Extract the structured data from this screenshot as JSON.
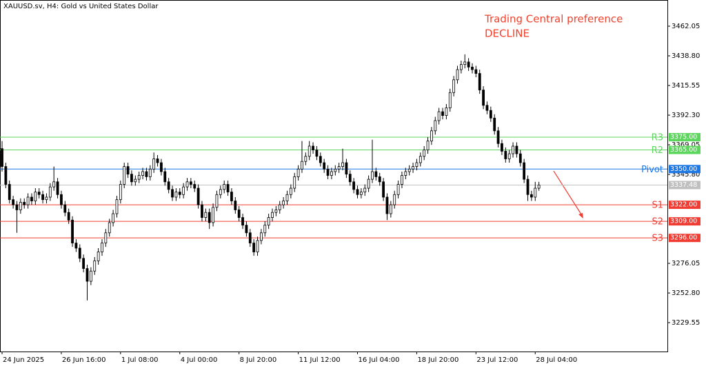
{
  "chart_data": {
    "type": "candlestick",
    "title": "XAUUSD.sv, H4:  Gold vs United States Dollar",
    "annotation": [
      "Trading Central preference",
      "DECLINE"
    ],
    "annotation_color": "#f0412d",
    "categories": [
      "24 Jun 2025",
      null,
      null,
      null,
      null,
      null,
      null,
      null,
      null,
      null,
      null,
      null,
      null,
      null,
      null,
      null,
      "26 Jun 16:00",
      null,
      null,
      null,
      null,
      null,
      null,
      null,
      null,
      null,
      null,
      null,
      null,
      null,
      null,
      null,
      "1 Jul 08:00",
      null,
      null,
      null,
      null,
      null,
      null,
      null,
      null,
      null,
      null,
      null,
      null,
      null,
      null,
      null,
      "4 Jul 00:00",
      null,
      null,
      null,
      null,
      null,
      null,
      null,
      null,
      null,
      null,
      null,
      null,
      null,
      null,
      null,
      "8 Jul 20:00",
      null,
      null,
      null,
      null,
      null,
      null,
      null,
      null,
      null,
      null,
      null,
      null,
      null,
      null,
      null,
      "11 Jul 12:00",
      null,
      null,
      null,
      null,
      null,
      null,
      null,
      null,
      null,
      null,
      null,
      null,
      null,
      null,
      null,
      "16 Jul 04:00",
      null,
      null,
      null,
      null,
      null,
      null,
      null,
      null,
      null,
      null,
      null,
      null,
      null,
      null,
      null,
      "18 Jul 20:00",
      null,
      null,
      null,
      null,
      null,
      null,
      null,
      null,
      null,
      null,
      null,
      null,
      null,
      null,
      null,
      "23 Jul 12:00",
      null,
      null,
      null,
      null,
      null,
      null,
      null,
      null,
      null,
      null,
      null,
      null,
      null,
      null,
      null,
      "28 Jul 04:00",
      null
    ],
    "candles": [
      [
        3366,
        3372,
        3348,
        3352
      ],
      [
        3352,
        3355,
        3335,
        3338
      ],
      [
        3338,
        3341,
        3323,
        3326
      ],
      [
        3326,
        3329,
        3319,
        3322
      ],
      [
        3322,
        3325,
        3300,
        3318
      ],
      [
        3318,
        3327,
        3315,
        3324
      ],
      [
        3324,
        3327,
        3319,
        3322
      ],
      [
        3322,
        3331,
        3319,
        3328
      ],
      [
        3328,
        3331,
        3322,
        3325
      ],
      [
        3325,
        3335,
        3322,
        3332
      ],
      [
        3332,
        3335,
        3327,
        3330
      ],
      [
        3330,
        3333,
        3323,
        3326
      ],
      [
        3326,
        3331,
        3323,
        3328
      ],
      [
        3328,
        3339,
        3325,
        3336
      ],
      [
        3336,
        3352,
        3333,
        3340
      ],
      [
        3340,
        3343,
        3327,
        3330
      ],
      [
        3330,
        3333,
        3319,
        3322
      ],
      [
        3322,
        3325,
        3313,
        3316
      ],
      [
        3316,
        3319,
        3307,
        3310
      ],
      [
        3310,
        3313,
        3289,
        3292
      ],
      [
        3292,
        3295,
        3285,
        3288
      ],
      [
        3288,
        3291,
        3277,
        3280
      ],
      [
        3280,
        3283,
        3269,
        3272
      ],
      [
        3272,
        3275,
        3247,
        3262
      ],
      [
        3262,
        3273,
        3259,
        3270
      ],
      [
        3270,
        3281,
        3267,
        3278
      ],
      [
        3278,
        3288,
        3275,
        3285
      ],
      [
        3285,
        3295,
        3282,
        3292
      ],
      [
        3292,
        3303,
        3289,
        3300
      ],
      [
        3300,
        3311,
        3297,
        3308
      ],
      [
        3308,
        3318,
        3305,
        3315
      ],
      [
        3315,
        3329,
        3312,
        3326
      ],
      [
        3326,
        3341,
        3323,
        3338
      ],
      [
        3338,
        3355,
        3335,
        3352
      ],
      [
        3352,
        3355,
        3343,
        3346
      ],
      [
        3346,
        3349,
        3337,
        3340
      ],
      [
        3340,
        3345,
        3337,
        3342
      ],
      [
        3342,
        3348,
        3339,
        3345
      ],
      [
        3345,
        3351,
        3342,
        3348
      ],
      [
        3348,
        3351,
        3341,
        3344
      ],
      [
        3344,
        3353,
        3341,
        3350
      ],
      [
        3350,
        3363,
        3347,
        3358
      ],
      [
        3358,
        3361,
        3352,
        3355
      ],
      [
        3355,
        3358,
        3345,
        3348
      ],
      [
        3348,
        3351,
        3337,
        3340
      ],
      [
        3340,
        3343,
        3331,
        3334
      ],
      [
        3334,
        3337,
        3325,
        3328
      ],
      [
        3328,
        3335,
        3325,
        3332
      ],
      [
        3332,
        3335,
        3327,
        3330
      ],
      [
        3330,
        3339,
        3327,
        3336
      ],
      [
        3336,
        3343,
        3333,
        3340
      ],
      [
        3340,
        3343,
        3335,
        3338
      ],
      [
        3338,
        3341,
        3332,
        3335
      ],
      [
        3335,
        3338,
        3319,
        3322
      ],
      [
        3322,
        3325,
        3309,
        3312
      ],
      [
        3312,
        3319,
        3309,
        3316
      ],
      [
        3316,
        3319,
        3303,
        3308
      ],
      [
        3308,
        3323,
        3305,
        3320
      ],
      [
        3320,
        3333,
        3317,
        3330
      ],
      [
        3330,
        3337,
        3327,
        3334
      ],
      [
        3334,
        3341,
        3331,
        3338
      ],
      [
        3338,
        3341,
        3329,
        3332
      ],
      [
        3332,
        3335,
        3322,
        3325
      ],
      [
        3325,
        3328,
        3315,
        3318
      ],
      [
        3318,
        3321,
        3309,
        3312
      ],
      [
        3312,
        3315,
        3303,
        3306
      ],
      [
        3306,
        3309,
        3297,
        3300
      ],
      [
        3300,
        3303,
        3289,
        3292
      ],
      [
        3292,
        3295,
        3282,
        3285
      ],
      [
        3285,
        3297,
        3282,
        3294
      ],
      [
        3294,
        3303,
        3291,
        3300
      ],
      [
        3300,
        3309,
        3297,
        3306
      ],
      [
        3306,
        3315,
        3303,
        3312
      ],
      [
        3312,
        3319,
        3309,
        3316
      ],
      [
        3316,
        3321,
        3313,
        3318
      ],
      [
        3318,
        3325,
        3315,
        3322
      ],
      [
        3322,
        3328,
        3319,
        3325
      ],
      [
        3325,
        3333,
        3322,
        3330
      ],
      [
        3330,
        3338,
        3327,
        3335
      ],
      [
        3335,
        3347,
        3332,
        3344
      ],
      [
        3344,
        3353,
        3341,
        3350
      ],
      [
        3350,
        3372,
        3347,
        3356
      ],
      [
        3356,
        3363,
        3353,
        3360
      ],
      [
        3360,
        3372,
        3357,
        3368
      ],
      [
        3368,
        3371,
        3362,
        3365
      ],
      [
        3365,
        3368,
        3357,
        3360
      ],
      [
        3360,
        3363,
        3352,
        3355
      ],
      [
        3355,
        3358,
        3347,
        3350
      ],
      [
        3350,
        3353,
        3342,
        3345
      ],
      [
        3345,
        3351,
        3342,
        3348
      ],
      [
        3348,
        3353,
        3345,
        3350
      ],
      [
        3350,
        3355,
        3347,
        3352
      ],
      [
        3352,
        3366,
        3349,
        3355
      ],
      [
        3355,
        3358,
        3343,
        3346
      ],
      [
        3346,
        3349,
        3337,
        3340
      ],
      [
        3340,
        3343,
        3331,
        3334
      ],
      [
        3334,
        3337,
        3327,
        3330
      ],
      [
        3330,
        3335,
        3327,
        3332
      ],
      [
        3332,
        3338,
        3329,
        3335
      ],
      [
        3335,
        3345,
        3332,
        3342
      ],
      [
        3342,
        3373,
        3339,
        3348
      ],
      [
        3348,
        3351,
        3341,
        3344
      ],
      [
        3344,
        3347,
        3337,
        3340
      ],
      [
        3340,
        3343,
        3325,
        3328
      ],
      [
        3328,
        3331,
        3310,
        3315
      ],
      [
        3315,
        3325,
        3312,
        3322
      ],
      [
        3322,
        3333,
        3319,
        3330
      ],
      [
        3330,
        3341,
        3327,
        3338
      ],
      [
        3338,
        3348,
        3335,
        3345
      ],
      [
        3345,
        3351,
        3342,
        3348
      ],
      [
        3348,
        3353,
        3345,
        3350
      ],
      [
        3350,
        3355,
        3347,
        3352
      ],
      [
        3352,
        3358,
        3349,
        3355
      ],
      [
        3355,
        3363,
        3352,
        3360
      ],
      [
        3360,
        3368,
        3357,
        3365
      ],
      [
        3365,
        3375,
        3362,
        3372
      ],
      [
        3372,
        3383,
        3369,
        3380
      ],
      [
        3380,
        3391,
        3377,
        3388
      ],
      [
        3388,
        3398,
        3385,
        3395
      ],
      [
        3395,
        3398,
        3389,
        3392
      ],
      [
        3392,
        3401,
        3389,
        3398
      ],
      [
        3398,
        3413,
        3395,
        3410
      ],
      [
        3410,
        3423,
        3407,
        3420
      ],
      [
        3420,
        3431,
        3417,
        3428
      ],
      [
        3428,
        3435,
        3425,
        3432
      ],
      [
        3432,
        3440,
        3429,
        3434
      ],
      [
        3434,
        3437,
        3427,
        3430
      ],
      [
        3430,
        3433,
        3425,
        3428
      ],
      [
        3428,
        3431,
        3422,
        3425
      ],
      [
        3425,
        3428,
        3409,
        3412
      ],
      [
        3412,
        3415,
        3397,
        3400
      ],
      [
        3400,
        3403,
        3393,
        3396
      ],
      [
        3396,
        3399,
        3387,
        3390
      ],
      [
        3390,
        3393,
        3377,
        3380
      ],
      [
        3380,
        3383,
        3367,
        3370
      ],
      [
        3370,
        3373,
        3361,
        3364
      ],
      [
        3364,
        3367,
        3355,
        3358
      ],
      [
        3358,
        3365,
        3355,
        3362
      ],
      [
        3362,
        3371,
        3359,
        3368
      ],
      [
        3368,
        3371,
        3359,
        3362
      ],
      [
        3362,
        3365,
        3352,
        3355
      ],
      [
        3355,
        3358,
        3339,
        3342
      ],
      [
        3342,
        3345,
        3325,
        3330
      ],
      [
        3330,
        3333,
        3325,
        3328
      ],
      [
        3328,
        3340,
        3325,
        3335
      ],
      [
        3335,
        3340,
        3333,
        3337.48
      ]
    ],
    "ylim": [
      3206.9,
      3482.6
    ],
    "yticks": [
      {
        "value": 3462.05,
        "label": "3462.05"
      },
      {
        "value": 3438.8,
        "label": "3438.80"
      },
      {
        "value": 3415.55,
        "label": "3415.55"
      },
      {
        "value": 3392.3,
        "label": "3392.30"
      },
      {
        "value": 3369.05,
        "label": "3369.05"
      },
      {
        "value": 3345.8,
        "label": "3345.80"
      },
      {
        "value": 3276.05,
        "label": "3276.05"
      },
      {
        "value": 3252.8,
        "label": "3252.80"
      },
      {
        "value": 3229.55,
        "label": "3229.55"
      }
    ],
    "levels": [
      {
        "name": "R3",
        "value": 3375,
        "label": "3375.00",
        "color": "#5cd65c"
      },
      {
        "name": "R2",
        "value": 3365,
        "label": "3365.00",
        "color": "#5cd65c"
      },
      {
        "name": "Pivot",
        "value": 3350,
        "label": "3350.00",
        "color": "#1e78e6"
      },
      {
        "name": "S1",
        "value": 3322,
        "label": "3322.00",
        "color": "#f03c32"
      },
      {
        "name": "S2",
        "value": 3309,
        "label": "3309.00",
        "color": "#f03c32"
      },
      {
        "name": "S3",
        "value": 3296,
        "label": "3296.00",
        "color": "#f03c32"
      }
    ],
    "last_price": 3337.48,
    "last_price_color": "#c0c0c0",
    "bull_color": "#ffffff",
    "bear_color": "#000000"
  }
}
